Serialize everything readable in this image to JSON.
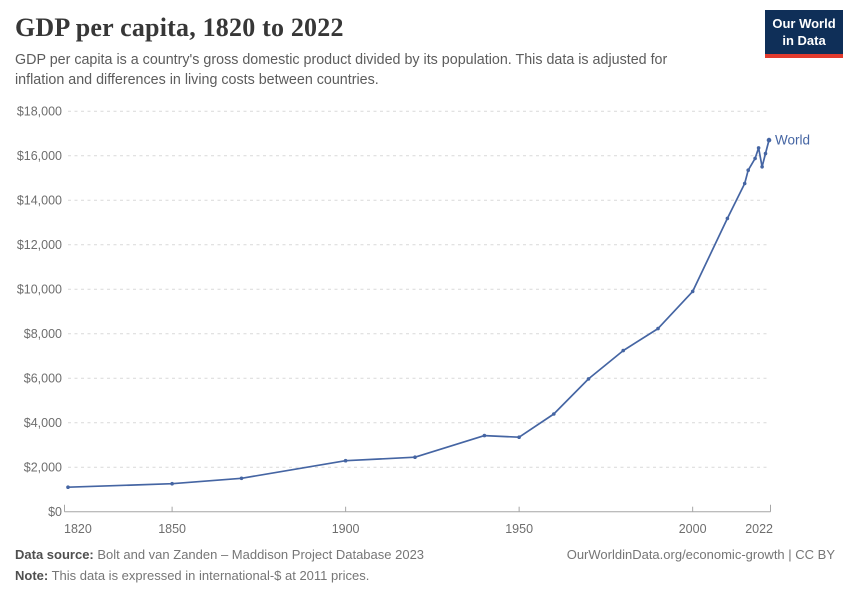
{
  "logo": {
    "line1": "Our World",
    "line2": "in Data",
    "bg": "#0f2f58",
    "accent": "#e23a2d"
  },
  "chart_data": {
    "type": "line",
    "title": "GDP per capita, 1820 to 2022",
    "subtitle": "GDP per capita is a country's gross domestic product divided by its population. This data is adjusted for inflation and differences in living costs between countries.",
    "xlabel": "",
    "ylabel": "",
    "xlim": [
      1820,
      2022
    ],
    "ylim": [
      0,
      18000
    ],
    "grid": "horizontal-dashed",
    "legend": "inline-end-of-line-label",
    "x_ticks": [
      {
        "value": 1820,
        "label": "1820"
      },
      {
        "value": 1850,
        "label": "1850"
      },
      {
        "value": 1900,
        "label": "1900"
      },
      {
        "value": 1950,
        "label": "1950"
      },
      {
        "value": 2000,
        "label": "2000"
      },
      {
        "value": 2022,
        "label": "2022"
      }
    ],
    "y_ticks": [
      {
        "value": 0,
        "label": "$0"
      },
      {
        "value": 2000,
        "label": "$2,000"
      },
      {
        "value": 4000,
        "label": "$4,000"
      },
      {
        "value": 6000,
        "label": "$6,000"
      },
      {
        "value": 8000,
        "label": "$8,000"
      },
      {
        "value": 10000,
        "label": "$10,000"
      },
      {
        "value": 12000,
        "label": "$12,000"
      },
      {
        "value": 14000,
        "label": "$14,000"
      },
      {
        "value": 16000,
        "label": "$16,000"
      },
      {
        "value": 18000,
        "label": "$18,000"
      }
    ],
    "series": [
      {
        "name": "World",
        "color": "#4565a3",
        "points": [
          [
            1820,
            1102
          ],
          [
            1850,
            1260
          ],
          [
            1870,
            1500
          ],
          [
            1900,
            2290
          ],
          [
            1920,
            2450
          ],
          [
            1940,
            3420
          ],
          [
            1950,
            3350
          ],
          [
            1960,
            4390
          ],
          [
            1970,
            5970
          ],
          [
            1980,
            7240
          ],
          [
            1990,
            8230
          ],
          [
            2000,
            9900
          ],
          [
            2010,
            13180
          ],
          [
            2015,
            14750
          ],
          [
            2016,
            15350
          ],
          [
            2018,
            15880
          ],
          [
            2019,
            16350
          ],
          [
            2020,
            15500
          ],
          [
            2021,
            16100
          ],
          [
            2022,
            16700
          ]
        ]
      }
    ]
  },
  "footer": {
    "source_label": "Data source:",
    "source_text": " Bolt and van Zanden – Maddison Project Database 2023",
    "note_label": "Note:",
    "note_text": " This data is expressed in international-$ at 2011 prices.",
    "link": "OurWorldinData.org/economic-growth | CC BY"
  }
}
